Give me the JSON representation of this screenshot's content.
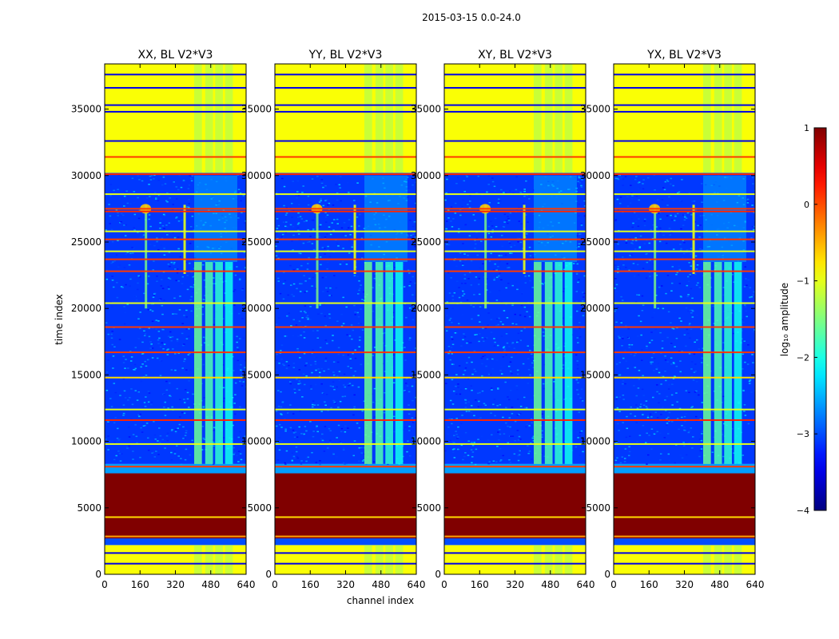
{
  "chart_data": {
    "type": "heatmap",
    "suptitle": "2015-03-15 0.0-24.0",
    "xlabel": "channel index",
    "ylabel": "time index",
    "xlim": [
      0,
      640
    ],
    "ylim": [
      0,
      38400
    ],
    "xticks": [
      "0",
      "160",
      "320",
      "480",
      "640"
    ],
    "yticks": [
      "0",
      "5000",
      "10000",
      "15000",
      "20000",
      "25000",
      "30000",
      "35000"
    ],
    "panels": [
      {
        "title": "XX, BL V2*V3",
        "rfi_channel": 185,
        "spike_channel": 360,
        "band_start": 405,
        "band_end": 600
      },
      {
        "title": "YY, BL V2*V3",
        "rfi_channel": 190,
        "spike_channel": 360,
        "band_start": 405,
        "band_end": 600
      },
      {
        "title": "XY, BL V2*V3",
        "rfi_channel": 185,
        "spike_channel": 360,
        "band_start": 405,
        "band_end": 600
      },
      {
        "title": "YX, BL V2*V3",
        "rfi_channel": 185,
        "spike_channel": 360,
        "band_start": 405,
        "band_end": 600
      }
    ],
    "colorbar": {
      "label": "log₁₀ amplitude",
      "ticks": [
        1,
        0,
        -1,
        -2,
        -3,
        -4
      ],
      "tick_labels": [
        "1",
        "0",
        "−1",
        "−2",
        "−3",
        "−4"
      ],
      "range": [
        -4,
        1
      ]
    },
    "colors": {
      "saturated": "#7f0000",
      "high": "#ff7f00",
      "mid": "#a6ff50",
      "low": "#1e5cff",
      "floor": "#0a1fd8"
    },
    "regions": [
      {
        "t0": 0,
        "t1": 2200,
        "level": -0.9
      },
      {
        "t0": 2200,
        "t1": 2700,
        "level": -3.0
      },
      {
        "t0": 2700,
        "t1": 7600,
        "level": 1.0
      },
      {
        "t0": 7600,
        "t1": 8300,
        "level": -2.6
      },
      {
        "t0": 8300,
        "t1": 30200,
        "level": -3.1
      },
      {
        "t0": 30200,
        "t1": 38400,
        "level": -0.9
      }
    ],
    "horizontal_lines": [
      {
        "t": 2850,
        "level": -0.4
      },
      {
        "t": 4300,
        "level": -0.7
      },
      {
        "t": 8100,
        "level": 0.1
      },
      {
        "t": 9800,
        "level": -1.0
      },
      {
        "t": 11600,
        "level": 0.2
      },
      {
        "t": 12400,
        "level": -1.0
      },
      {
        "t": 14800,
        "level": -0.7
      },
      {
        "t": 16700,
        "level": 0.1
      },
      {
        "t": 18600,
        "level": 0.1
      },
      {
        "t": 20400,
        "level": -1.0
      },
      {
        "t": 22800,
        "level": 0.1
      },
      {
        "t": 23700,
        "level": 0.1
      },
      {
        "t": 24300,
        "level": -1.0
      },
      {
        "t": 25200,
        "level": 0.1
      },
      {
        "t": 25800,
        "level": -1.0
      },
      {
        "t": 27300,
        "level": 0.2
      },
      {
        "t": 27500,
        "level": 0.1
      },
      {
        "t": 28600,
        "level": -1.0
      },
      {
        "t": 30100,
        "level": 0.2
      },
      {
        "t": 31400,
        "level": 0.1
      },
      {
        "t": 32600,
        "level": -3.5
      },
      {
        "t": 34800,
        "level": -3.5
      },
      {
        "t": 35300,
        "level": -3.5
      },
      {
        "t": 36600,
        "level": -3.5
      },
      {
        "t": 37600,
        "level": -3.5
      },
      {
        "t": 1600,
        "level": -3.5
      },
      {
        "t": 800,
        "level": -3.5
      }
    ]
  }
}
